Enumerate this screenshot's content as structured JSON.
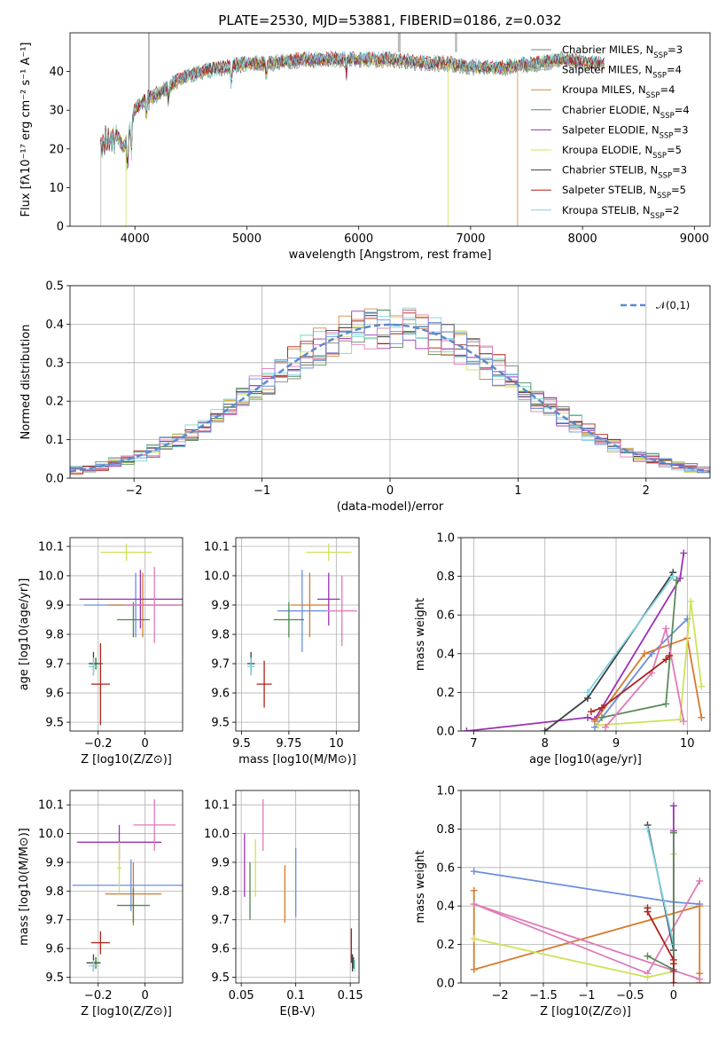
{
  "figure": {
    "title": "PLATE=2530, MJD=53881, FIBERID=0186, z=0.032"
  },
  "chart_data": [
    {
      "id": "spectrum",
      "type": "line",
      "xlabel": "wavelength [Angstrom, rest frame]",
      "ylabel": "Flux [fλ10⁻¹⁷ erg cm⁻² s⁻¹ A⁻¹]",
      "xlim": [
        3420,
        9140
      ],
      "ylim": [
        0,
        50
      ],
      "xticks": [
        4000,
        5000,
        6000,
        7000,
        8000,
        9000
      ],
      "yticks": [
        0,
        10,
        20,
        30,
        40
      ],
      "legend_position": "upper right",
      "data_color": "#555555",
      "series": [
        {
          "name": "Chabrier MILES, N",
          "sub": "SSP",
          "count": "=3",
          "color": "#7f7f7f"
        },
        {
          "name": "Salpeter MILES, N",
          "sub": "SSP",
          "count": "=4",
          "color": "#7fd4c9"
        },
        {
          "name": "Kroupa MILES, N",
          "sub": "SSP",
          "count": "=4",
          "color": "#d38a3d"
        },
        {
          "name": "Chabrier ELODIE, N",
          "sub": "SSP",
          "count": "=4",
          "color": "#5a8a5a"
        },
        {
          "name": "Salpeter ELODIE, N",
          "sub": "SSP",
          "count": "=3",
          "color": "#9a32b4"
        },
        {
          "name": "Kroupa ELODIE, N",
          "sub": "SSP",
          "count": "=5",
          "color": "#cfe15a"
        },
        {
          "name": "Chabrier STELIB, N",
          "sub": "SSP",
          "count": "=3",
          "color": "#3f3f3f"
        },
        {
          "name": "Salpeter STELIB, N",
          "sub": "SSP",
          "count": "=5",
          "color": "#b0201a"
        },
        {
          "name": "Kroupa STELIB, N",
          "sub": "SSP",
          "count": "=2",
          "color": "#7ed4e6"
        }
      ],
      "anchors": [
        [
          3700,
          24
        ],
        [
          3800,
          26
        ],
        [
          3900,
          20
        ],
        [
          4000,
          30
        ],
        [
          4100,
          33
        ],
        [
          4200,
          34
        ],
        [
          4400,
          38
        ],
        [
          4600,
          40
        ],
        [
          4800,
          41
        ],
        [
          5000,
          42
        ],
        [
          5200,
          42
        ],
        [
          5500,
          43
        ],
        [
          5800,
          43
        ],
        [
          6000,
          43
        ],
        [
          6300,
          43
        ],
        [
          6600,
          42
        ],
        [
          6800,
          42
        ],
        [
          7000,
          41
        ],
        [
          7300,
          41
        ],
        [
          7600,
          42
        ],
        [
          7800,
          43
        ],
        [
          8100,
          42
        ]
      ]
    },
    {
      "id": "residuals",
      "type": "histogram",
      "xlabel": "(data-model)/error",
      "ylabel": "Normed distribution",
      "xlim": [
        -2.5,
        2.5
      ],
      "ylim": [
        0,
        0.5
      ],
      "xticks": [
        -2,
        -1,
        0,
        1,
        2
      ],
      "yticks": [
        0.0,
        0.1,
        0.2,
        0.3,
        0.4,
        0.5
      ],
      "legend": "𝒩(0,1)",
      "legend_position": "upper right",
      "normal_curve": {
        "mean": 0,
        "std": 1,
        "color": "#5a8ad0"
      }
    },
    {
      "id": "age_vs_Z",
      "type": "errorbar",
      "xlabel": "Z [log10(Z/Z⊙)]",
      "ylabel": "age [log10(age/yr)]",
      "xlim": [
        -0.32,
        0.16
      ],
      "ylim": [
        9.47,
        10.13
      ],
      "xticks": [
        -0.2,
        0.0
      ],
      "yticks": [
        9.5,
        9.6,
        9.7,
        9.8,
        9.9,
        10.0,
        10.1
      ],
      "points": [
        {
          "x": -0.04,
          "y": 9.9,
          "xerr": 0.22,
          "yerr": 0.11,
          "color": "#6a8ee0"
        },
        {
          "x": -0.01,
          "y": 9.9,
          "xerr": 0.15,
          "yerr": 0.11,
          "color": "#d67a2a"
        },
        {
          "x": -0.05,
          "y": 9.85,
          "xerr": 0.07,
          "yerr": 0.06,
          "color": "#4a8a4a"
        },
        {
          "x": -0.02,
          "y": 9.92,
          "xerr": 0.26,
          "yerr": 0.1,
          "color": "#9a32b4"
        },
        {
          "x": -0.08,
          "y": 10.08,
          "xerr": 0.11,
          "yerr": 0.03,
          "color": "#cfe15a"
        },
        {
          "x": 0.04,
          "y": 9.9,
          "xerr": 0.13,
          "yerr": 0.13,
          "color": "#e07ab8"
        },
        {
          "x": -0.22,
          "y": 9.7,
          "xerr": 0.02,
          "yerr": 0.04,
          "color": "#3f3f3f"
        },
        {
          "x": -0.21,
          "y": 9.7,
          "xerr": 0.03,
          "yerr": 0.02,
          "color": "#2a6a2a"
        },
        {
          "x": -0.22,
          "y": 9.69,
          "xerr": 0.02,
          "yerr": 0.03,
          "color": "#7ed4e6"
        },
        {
          "x": -0.19,
          "y": 9.63,
          "xerr": 0.04,
          "yerr": 0.14,
          "color": "#b0201a"
        }
      ]
    },
    {
      "id": "age_vs_mass",
      "type": "errorbar",
      "xlabel": "mass [log10(M/M⊙)]",
      "ylabel": "",
      "xlim": [
        9.47,
        10.12
      ],
      "ylim": [
        9.47,
        10.13
      ],
      "xticks": [
        9.5,
        9.75,
        10.0
      ],
      "yticks": [
        9.5,
        9.6,
        9.7,
        9.8,
        9.9,
        10.0,
        10.1
      ],
      "points": [
        {
          "x": 9.82,
          "y": 9.88,
          "xerr": 0.13,
          "yerr": 0.14,
          "color": "#6a8ee0"
        },
        {
          "x": 9.86,
          "y": 9.9,
          "xerr": 0.1,
          "yerr": 0.11,
          "color": "#d67a2a"
        },
        {
          "x": 9.75,
          "y": 9.85,
          "xerr": 0.08,
          "yerr": 0.06,
          "color": "#4a8a4a"
        },
        {
          "x": 9.96,
          "y": 9.92,
          "xerr": 0.06,
          "yerr": 0.09,
          "color": "#9a32b4"
        },
        {
          "x": 9.96,
          "y": 10.08,
          "xerr": 0.12,
          "yerr": 0.03,
          "color": "#cfe15a"
        },
        {
          "x": 10.03,
          "y": 9.88,
          "xerr": 0.08,
          "yerr": 0.12,
          "color": "#e07ab8"
        },
        {
          "x": 9.55,
          "y": 9.7,
          "xerr": 0.02,
          "yerr": 0.04,
          "color": "#3f3f3f"
        },
        {
          "x": 9.55,
          "y": 9.7,
          "xerr": 0.01,
          "yerr": 0.02,
          "color": "#2a6a2a"
        },
        {
          "x": 9.55,
          "y": 9.69,
          "xerr": 0.02,
          "yerr": 0.03,
          "color": "#7ed4e6"
        },
        {
          "x": 9.62,
          "y": 9.63,
          "xerr": 0.04,
          "yerr": 0.08,
          "color": "#b0201a"
        }
      ]
    },
    {
      "id": "weight_vs_age",
      "type": "line",
      "xlabel": "age [log10(age/yr)]",
      "ylabel": "mass weight",
      "xlim": [
        6.82,
        10.32
      ],
      "ylim": [
        0,
        1
      ],
      "xticks": [
        7,
        8,
        9,
        10
      ],
      "yticks": [
        0.0,
        0.2,
        0.4,
        0.6,
        0.8,
        1.0
      ],
      "series": [
        {
          "color": "#9a32b4",
          "x": [
            6.9,
            8.6,
            8.7,
            9.9,
            9.95
          ],
          "y": [
            0.0,
            0.07,
            0.06,
            0.79,
            0.92
          ]
        },
        {
          "color": "#3f3f3f",
          "x": [
            8.0,
            8.6,
            9.8
          ],
          "y": [
            0.0,
            0.17,
            0.82
          ]
        },
        {
          "color": "#7ed4e6",
          "x": [
            8.6,
            9.8
          ],
          "y": [
            0.2,
            0.8
          ]
        },
        {
          "color": "#6a8ee0",
          "x": [
            8.7,
            9.5,
            10.0
          ],
          "y": [
            0.02,
            0.4,
            0.58
          ]
        },
        {
          "color": "#d67a2a",
          "x": [
            8.7,
            9.4,
            10.0,
            10.2
          ],
          "y": [
            0.05,
            0.4,
            0.48,
            0.07
          ]
        },
        {
          "color": "#5a8a5a",
          "x": [
            8.8,
            9.7,
            9.85
          ],
          "y": [
            0.07,
            0.14,
            0.78
          ]
        },
        {
          "color": "#cfe15a",
          "x": [
            8.75,
            9.9,
            10.05,
            10.2
          ],
          "y": [
            0.03,
            0.06,
            0.67,
            0.23
          ]
        },
        {
          "color": "#e07ab8",
          "x": [
            8.85,
            9.5,
            9.7,
            9.95
          ],
          "y": [
            0.02,
            0.3,
            0.53,
            0.05
          ]
        },
        {
          "color": "#b0201a",
          "x": [
            8.65,
            8.8,
            9.7,
            9.75
          ],
          "y": [
            0.1,
            0.12,
            0.37,
            0.39
          ]
        }
      ]
    },
    {
      "id": "mass_vs_Z",
      "type": "errorbar",
      "xlabel": "Z [log10(Z/Z⊙)]",
      "ylabel": "mass [log10(M/M⊙)]",
      "xlim": [
        -0.32,
        0.16
      ],
      "ylim": [
        9.48,
        10.15
      ],
      "xticks": [
        -0.2,
        0.0
      ],
      "yticks": [
        9.5,
        9.6,
        9.7,
        9.8,
        9.9,
        10.0,
        10.1
      ],
      "points": [
        {
          "x": -0.06,
          "y": 9.82,
          "xerr": 0.25,
          "yerr": 0.09,
          "color": "#6a8ee0"
        },
        {
          "x": -0.05,
          "y": 9.79,
          "xerr": 0.12,
          "yerr": 0.11,
          "color": "#d67a2a"
        },
        {
          "x": -0.05,
          "y": 9.75,
          "xerr": 0.07,
          "yerr": 0.06,
          "color": "#4a8a4a"
        },
        {
          "x": -0.11,
          "y": 9.97,
          "xerr": 0.18,
          "yerr": 0.06,
          "color": "#9a32b4"
        },
        {
          "x": -0.11,
          "y": 9.88,
          "xerr": 0.01,
          "yerr": 0.09,
          "color": "#cfe15a"
        },
        {
          "x": 0.04,
          "y": 10.03,
          "xerr": 0.09,
          "yerr": 0.09,
          "color": "#e07ab8"
        },
        {
          "x": -0.22,
          "y": 9.55,
          "xerr": 0.03,
          "yerr": 0.03,
          "color": "#3f3f3f"
        },
        {
          "x": -0.21,
          "y": 9.55,
          "xerr": 0.02,
          "yerr": 0.02,
          "color": "#2a6a2a"
        },
        {
          "x": -0.22,
          "y": 9.54,
          "xerr": 0.02,
          "yerr": 0.02,
          "color": "#7ed4e6"
        },
        {
          "x": -0.19,
          "y": 9.62,
          "xerr": 0.04,
          "yerr": 0.04,
          "color": "#b0201a"
        }
      ]
    },
    {
      "id": "mass_vs_ebv",
      "type": "errorbar",
      "xlabel": "E(B-V)",
      "ylabel": "",
      "xlim": [
        0.045,
        0.158
      ],
      "ylim": [
        9.48,
        10.15
      ],
      "xticks": [
        0.05,
        0.1,
        0.15
      ],
      "yticks": [
        9.5,
        9.6,
        9.7,
        9.8,
        9.9,
        10.0,
        10.1
      ],
      "points": [
        {
          "x": 0.1,
          "y": 9.83,
          "xerr": 0,
          "yerr": 0.12,
          "color": "#6a8ee0"
        },
        {
          "x": 0.09,
          "y": 9.79,
          "xerr": 0,
          "yerr": 0.1,
          "color": "#d67a2a"
        },
        {
          "x": 0.058,
          "y": 9.8,
          "xerr": 0,
          "yerr": 0.1,
          "color": "#4a8a4a"
        },
        {
          "x": 0.053,
          "y": 9.89,
          "xerr": 0,
          "yerr": 0.11,
          "color": "#9a32b4"
        },
        {
          "x": 0.063,
          "y": 9.88,
          "xerr": 0,
          "yerr": 0.1,
          "color": "#cfe15a"
        },
        {
          "x": 0.07,
          "y": 10.03,
          "xerr": 0,
          "yerr": 0.09,
          "color": "#e07ab8"
        },
        {
          "x": 0.152,
          "y": 9.55,
          "xerr": 0,
          "yerr": 0.03,
          "color": "#3f3f3f"
        },
        {
          "x": 0.153,
          "y": 9.55,
          "xerr": 0,
          "yerr": 0.02,
          "color": "#2a6a2a"
        },
        {
          "x": 0.154,
          "y": 9.54,
          "xerr": 0,
          "yerr": 0.02,
          "color": "#7ed4e6"
        },
        {
          "x": 0.151,
          "y": 9.61,
          "xerr": 0,
          "yerr": 0.06,
          "color": "#b0201a"
        }
      ]
    },
    {
      "id": "weight_vs_Z",
      "type": "line",
      "xlabel": "Z [log10(Z/Z⊙)]",
      "ylabel": "mass weight",
      "xlim": [
        -2.45,
        0.42
      ],
      "ylim": [
        0,
        1
      ],
      "xticks": [
        -2.0,
        -1.5,
        -1.0,
        -0.5,
        0.0
      ],
      "yticks": [
        0.0,
        0.2,
        0.4,
        0.6,
        0.8,
        1.0
      ],
      "series": [
        {
          "color": "#6a8ee0",
          "x": [
            -2.3,
            0.0,
            0.3
          ],
          "y": [
            0.58,
            0.42,
            0.41
          ]
        },
        {
          "color": "#d67a2a",
          "x": [
            -2.3,
            -2.3,
            0.3,
            0.3,
            0.3
          ],
          "y": [
            0.48,
            0.07,
            0.4,
            0.05,
            0.0
          ]
        },
        {
          "color": "#e07ab8",
          "x": [
            0.3,
            -0.3,
            -2.3,
            0.3
          ],
          "y": [
            0.53,
            0.05,
            0.41,
            0.02
          ]
        },
        {
          "color": "#cfe15a",
          "x": [
            -2.3,
            -0.3,
            0.0,
            0.0
          ],
          "y": [
            0.23,
            0.03,
            0.06,
            0.67
          ]
        },
        {
          "color": "#9a32b4",
          "x": [
            0.0,
            0.0,
            0.0
          ],
          "y": [
            0.92,
            0.79,
            0.06
          ]
        },
        {
          "color": "#3f3f3f",
          "x": [
            -0.3,
            0.0
          ],
          "y": [
            0.82,
            0.17
          ]
        },
        {
          "color": "#7ed4e6",
          "x": [
            -0.3,
            0.0
          ],
          "y": [
            0.8,
            0.2
          ]
        },
        {
          "color": "#5a8a5a",
          "x": [
            -0.3,
            0.0,
            0.0
          ],
          "y": [
            0.14,
            0.07,
            0.78
          ]
        },
        {
          "color": "#b0201a",
          "x": [
            -0.3,
            -0.3,
            0.0,
            0.0,
            0.0
          ],
          "y": [
            0.39,
            0.37,
            0.12,
            0.1,
            0.0
          ]
        }
      ]
    }
  ]
}
